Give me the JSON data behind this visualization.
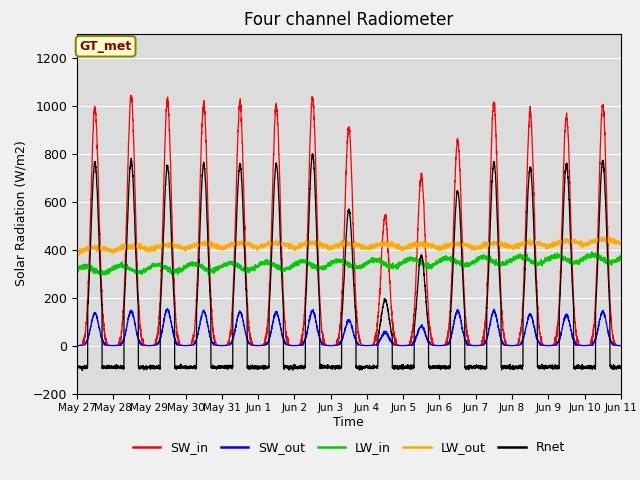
{
  "title": "Four channel Radiometer",
  "xlabel": "Time",
  "ylabel": "Solar Radiation (W/m2)",
  "ylim": [
    -200,
    1300
  ],
  "yticks": [
    -200,
    0,
    200,
    400,
    600,
    800,
    1000,
    1200
  ],
  "annotation": "GT_met",
  "bg_color": "#f0f0f0",
  "plot_bg_color": "#dcdcdc",
  "line_colors": {
    "SW_in": "#ff0000",
    "SW_out": "#0000ff",
    "LW_in": "#00cc00",
    "LW_out": "#ffaa00",
    "Rnet": "#000000"
  },
  "n_days": 15,
  "x_tick_labels": [
    "May 27",
    "May 28",
    "May 29",
    "May 30",
    "May 31",
    "Jun 1",
    "Jun 2",
    "Jun 3",
    "Jun 4",
    "Jun 5",
    "Jun 6",
    "Jun 7",
    "Jun 8",
    "Jun 9",
    "Jun 10",
    "Jun 11"
  ],
  "points_per_day": 288,
  "SW_in_peaks": [
    990,
    1040,
    1020,
    1005,
    1005,
    1000,
    1030,
    910,
    540,
    705,
    855,
    1010,
    970,
    960,
    1000
  ],
  "SW_out_peaks": [
    135,
    145,
    150,
    143,
    140,
    138,
    145,
    105,
    55,
    80,
    145,
    143,
    130,
    128,
    142
  ],
  "Rnet_peaks": [
    760,
    770,
    750,
    755,
    755,
    755,
    795,
    565,
    190,
    375,
    645,
    765,
    740,
    755,
    770
  ],
  "LW_in_base": 315,
  "LW_out_base": 385
}
